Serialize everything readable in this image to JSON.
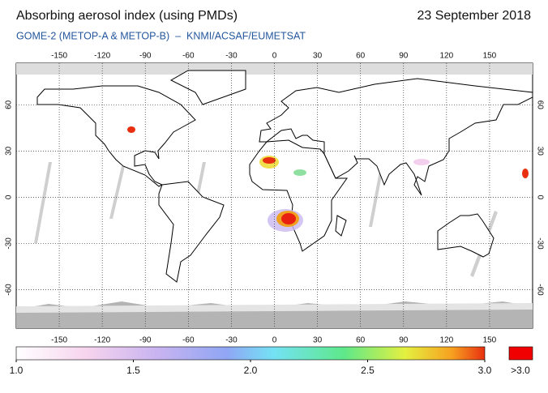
{
  "header": {
    "title": "Absorbing aerosol index (using PMDs)",
    "date": "23 September 2018",
    "subtitle": "GOME-2 (METOP-A & METOP-B)  –  KNMI/ACSAF/EUMETSAT"
  },
  "map": {
    "lonlim": [
      -180,
      180
    ],
    "latlim": [
      -85,
      87
    ],
    "lon_ticks": [
      -150,
      -120,
      -90,
      -60,
      -30,
      0,
      30,
      60,
      90,
      120,
      150
    ],
    "lat_ticks": [
      60,
      30,
      0,
      -30,
      -60
    ]
  },
  "colorbar": {
    "lim": [
      1,
      3
    ],
    "ticks": [
      {
        "value": 1,
        "label": "1.0"
      },
      1.5,
      {
        "value": 2,
        "label": "2.0"
      },
      2.5,
      {
        "value": 3,
        "label": "3.0"
      }
    ],
    "overflow_label": ">3.0"
  }
}
